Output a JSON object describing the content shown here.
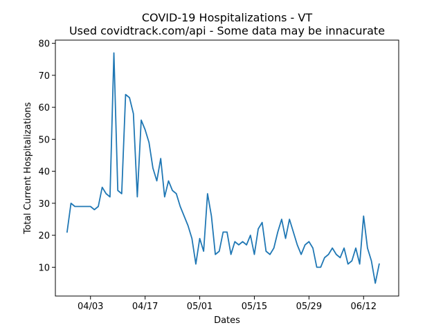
{
  "chart_data": {
    "type": "line",
    "title": "COVID-19 Hospitalizations - VT",
    "subtitle": "Used covidtrack.com/api - Some data may be innacurate",
    "xlabel": "Dates",
    "ylabel": "Total Current Hospitalizations",
    "x_tick_labels": [
      "04/03",
      "04/17",
      "05/01",
      "05/15",
      "05/29",
      "06/12"
    ],
    "x_tick_dates": [
      "2020-04-03",
      "2020-04-17",
      "2020-05-01",
      "2020-05-15",
      "2020-05-29",
      "2020-06-12"
    ],
    "y_ticks": [
      10,
      20,
      30,
      40,
      50,
      60,
      70,
      80
    ],
    "xlim": [
      "2020-03-25",
      "2020-06-21"
    ],
    "ylim": [
      1,
      81
    ],
    "grid": false,
    "color": "#1f77b4",
    "series": [
      {
        "points": [
          [
            "2020-03-28",
            21
          ],
          [
            "2020-03-29",
            30
          ],
          [
            "2020-03-30",
            29
          ],
          [
            "2020-03-31",
            29
          ],
          [
            "2020-04-01",
            29
          ],
          [
            "2020-04-02",
            29
          ],
          [
            "2020-04-03",
            29
          ],
          [
            "2020-04-04",
            28
          ],
          [
            "2020-04-05",
            29
          ],
          [
            "2020-04-06",
            35
          ],
          [
            "2020-04-07",
            33
          ],
          [
            "2020-04-08",
            32
          ],
          [
            "2020-04-09",
            77
          ],
          [
            "2020-04-10",
            34
          ],
          [
            "2020-04-11",
            33
          ],
          [
            "2020-04-12",
            64
          ],
          [
            "2020-04-13",
            63
          ],
          [
            "2020-04-14",
            58
          ],
          [
            "2020-04-15",
            32
          ],
          [
            "2020-04-16",
            56
          ],
          [
            "2020-04-17",
            53
          ],
          [
            "2020-04-18",
            49
          ],
          [
            "2020-04-19",
            41
          ],
          [
            "2020-04-20",
            37
          ],
          [
            "2020-04-21",
            44
          ],
          [
            "2020-04-22",
            32
          ],
          [
            "2020-04-23",
            37
          ],
          [
            "2020-04-24",
            34
          ],
          [
            "2020-04-25",
            33
          ],
          [
            "2020-04-26",
            29
          ],
          [
            "2020-04-27",
            26
          ],
          [
            "2020-04-28",
            23
          ],
          [
            "2020-04-29",
            19
          ],
          [
            "2020-04-30",
            11
          ],
          [
            "2020-05-01",
            19
          ],
          [
            "2020-05-02",
            15
          ],
          [
            "2020-05-03",
            33
          ],
          [
            "2020-05-04",
            26
          ],
          [
            "2020-05-05",
            14
          ],
          [
            "2020-05-06",
            15
          ],
          [
            "2020-05-07",
            21
          ],
          [
            "2020-05-08",
            21
          ],
          [
            "2020-05-09",
            14
          ],
          [
            "2020-05-10",
            18
          ],
          [
            "2020-05-11",
            17
          ],
          [
            "2020-05-12",
            18
          ],
          [
            "2020-05-13",
            17
          ],
          [
            "2020-05-14",
            20
          ],
          [
            "2020-05-15",
            14
          ],
          [
            "2020-05-16",
            22
          ],
          [
            "2020-05-17",
            24
          ],
          [
            "2020-05-18",
            15
          ],
          [
            "2020-05-19",
            14
          ],
          [
            "2020-05-20",
            16
          ],
          [
            "2020-05-21",
            21
          ],
          [
            "2020-05-22",
            25
          ],
          [
            "2020-05-23",
            19
          ],
          [
            "2020-05-24",
            25
          ],
          [
            "2020-05-25",
            21
          ],
          [
            "2020-05-26",
            17
          ],
          [
            "2020-05-27",
            14
          ],
          [
            "2020-05-28",
            17
          ],
          [
            "2020-05-29",
            18
          ],
          [
            "2020-05-30",
            16
          ],
          [
            "2020-05-31",
            10
          ],
          [
            "2020-06-01",
            10
          ],
          [
            "2020-06-02",
            13
          ],
          [
            "2020-06-03",
            14
          ],
          [
            "2020-06-04",
            16
          ],
          [
            "2020-06-05",
            14
          ],
          [
            "2020-06-06",
            13
          ],
          [
            "2020-06-07",
            16
          ],
          [
            "2020-06-08",
            11
          ],
          [
            "2020-06-09",
            12
          ],
          [
            "2020-06-10",
            16
          ],
          [
            "2020-06-11",
            11
          ],
          [
            "2020-06-12",
            26
          ],
          [
            "2020-06-13",
            16
          ],
          [
            "2020-06-14",
            12
          ],
          [
            "2020-06-15",
            5
          ],
          [
            "2020-06-16",
            11
          ]
        ]
      }
    ]
  }
}
